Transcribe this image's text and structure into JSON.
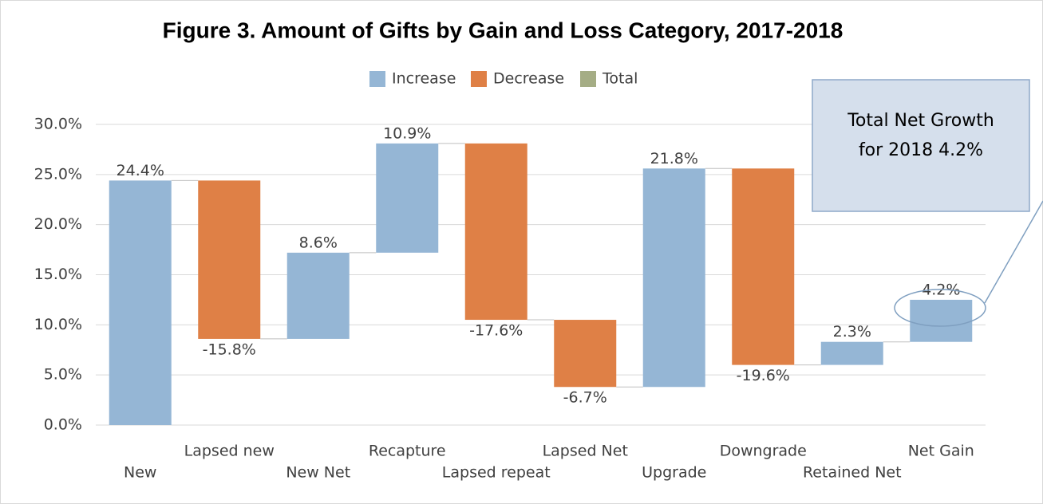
{
  "chart_data": {
    "type": "waterfall",
    "title": "Figure 3. Amount of Gifts by Gain and Loss Category, 2017-2018",
    "legend": [
      {
        "name": "Increase",
        "color": "#95b6d5"
      },
      {
        "name": "Decrease",
        "color": "#df8046"
      },
      {
        "name": "Total",
        "color": "#a5ad85"
      }
    ],
    "categories": [
      "New",
      "Lapsed new",
      "New Net",
      "Recapture",
      "Lapsed repeat",
      "Lapsed Net",
      "Upgrade",
      "Downgrade",
      "Retained Net",
      "Net Gain"
    ],
    "values": [
      24.4,
      -15.8,
      8.6,
      10.9,
      -17.6,
      -6.7,
      21.8,
      -19.6,
      2.3,
      4.2
    ],
    "value_labels": [
      "24.4%",
      "-15.8%",
      "8.6%",
      "10.9%",
      "-17.6%",
      "-6.7%",
      "21.8%",
      "-19.6%",
      "2.3%",
      "4.2%"
    ],
    "ylim": [
      0,
      30
    ],
    "yticks": [
      {
        "value": 0,
        "label": "0.0%"
      },
      {
        "value": 5,
        "label": "5.0%"
      },
      {
        "value": 10,
        "label": "10.0%"
      },
      {
        "value": 15,
        "label": "15.0%"
      },
      {
        "value": 20,
        "label": "20.0%"
      },
      {
        "value": 25,
        "label": "25.0%"
      },
      {
        "value": 30,
        "label": "30.0%"
      }
    ],
    "grid": true,
    "annotation": [
      "Total Net Growth",
      "for 2018 4.2%"
    ]
  }
}
